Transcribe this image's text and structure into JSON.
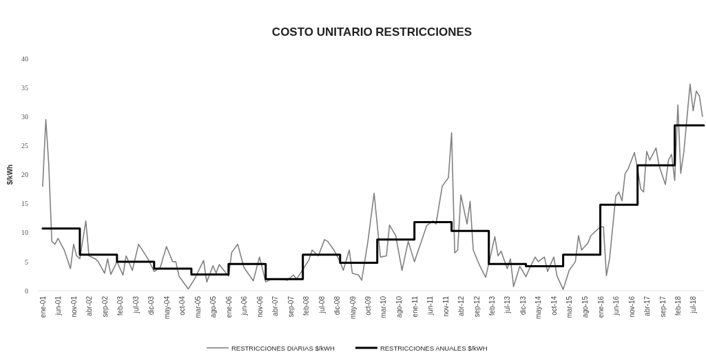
{
  "chart_data": {
    "type": "line",
    "title": "COSTO UNITARIO RESTRICCIONES",
    "ylabel": "$/kWh",
    "xlim": [
      "2000-11-15",
      "2018-10-15"
    ],
    "xticks": [
      {
        "value": "2001-01",
        "label": "ene-01"
      },
      {
        "value": "2001-06",
        "label": "jun-01"
      },
      {
        "value": "2001-11",
        "label": "nov-01"
      },
      {
        "value": "2002-04",
        "label": "abr-02"
      },
      {
        "value": "2002-09",
        "label": "sep-02"
      },
      {
        "value": "2003-02",
        "label": "feb-03"
      },
      {
        "value": "2003-07",
        "label": "jul-03"
      },
      {
        "value": "2003-12",
        "label": "dic-03"
      },
      {
        "value": "2004-05",
        "label": "may-04"
      },
      {
        "value": "2004-10",
        "label": "oct-04"
      },
      {
        "value": "2005-03",
        "label": "mar-05"
      },
      {
        "value": "2005-08",
        "label": "ago-05"
      },
      {
        "value": "2006-01",
        "label": "ene-06"
      },
      {
        "value": "2006-06",
        "label": "jun-06"
      },
      {
        "value": "2006-11",
        "label": "nov-06"
      },
      {
        "value": "2007-04",
        "label": "abr-07"
      },
      {
        "value": "2007-09",
        "label": "sep-07"
      },
      {
        "value": "2008-02",
        "label": "feb-08"
      },
      {
        "value": "2008-07",
        "label": "jul-08"
      },
      {
        "value": "2008-12",
        "label": "dic-08"
      },
      {
        "value": "2009-05",
        "label": "may-09"
      },
      {
        "value": "2009-10",
        "label": "oct-09"
      },
      {
        "value": "2010-03",
        "label": "mar-10"
      },
      {
        "value": "2010-08",
        "label": "ago-10"
      },
      {
        "value": "2011-01",
        "label": "ene-11"
      },
      {
        "value": "2011-06",
        "label": "jun-11"
      },
      {
        "value": "2011-11",
        "label": "nov-11"
      },
      {
        "value": "2012-04",
        "label": "abr-12"
      },
      {
        "value": "2012-09",
        "label": "sep-12"
      },
      {
        "value": "2013-02",
        "label": "feb-13"
      },
      {
        "value": "2013-07",
        "label": "jul-13"
      },
      {
        "value": "2013-12",
        "label": "dic-13"
      },
      {
        "value": "2014-05",
        "label": "may-14"
      },
      {
        "value": "2014-10",
        "label": "oct-14"
      },
      {
        "value": "2015-03",
        "label": "mar-15"
      },
      {
        "value": "2015-08",
        "label": "ago-15"
      },
      {
        "value": "2016-01",
        "label": "ene-16"
      },
      {
        "value": "2016-06",
        "label": "jun-16"
      },
      {
        "value": "2016-11",
        "label": "nov-16"
      },
      {
        "value": "2017-04",
        "label": "abr-17"
      },
      {
        "value": "2017-09",
        "label": "sep-17"
      },
      {
        "value": "2018-02",
        "label": "feb-18"
      },
      {
        "value": "2018-07",
        "label": "jul-18"
      }
    ],
    "ylim": [
      0,
      40
    ],
    "yticks": [
      0,
      5,
      10,
      15,
      20,
      25,
      30,
      35,
      40
    ],
    "grid": false,
    "legend": "bottom",
    "line_style": "solid",
    "marker": "none",
    "series": [
      {
        "name": "RESTRICCIONES DIARIAS $/kWH",
        "color": "#808080",
        "x": [
          "2001-01",
          "2001-02",
          "2001-03",
          "2001-04",
          "2001-05",
          "2001-06",
          "2001-08",
          "2001-10",
          "2001-11",
          "2001-12",
          "2002-01",
          "2002-03",
          "2002-04",
          "2002-06",
          "2002-07",
          "2002-09",
          "2002-10",
          "2002-11",
          "2003-01",
          "2003-03",
          "2003-04",
          "2003-06",
          "2003-08",
          "2003-11",
          "2004-01",
          "2004-03",
          "2004-05",
          "2004-07",
          "2004-08",
          "2004-09",
          "2004-12",
          "2005-02",
          "2005-05",
          "2005-06",
          "2005-08",
          "2005-09",
          "2005-10",
          "2006-01",
          "2006-02",
          "2006-04",
          "2006-06",
          "2006-09",
          "2006-11",
          "2007-01",
          "2007-03",
          "2007-06",
          "2007-08",
          "2007-10",
          "2007-11",
          "2008-03",
          "2008-04",
          "2008-06",
          "2008-08",
          "2008-09",
          "2008-11",
          "2009-01",
          "2009-02",
          "2009-04",
          "2009-05",
          "2009-07",
          "2009-08",
          "2009-10",
          "2009-12",
          "2010-02",
          "2010-04",
          "2010-05",
          "2010-07",
          "2010-09",
          "2010-11",
          "2011-01",
          "2011-03",
          "2011-05",
          "2011-07",
          "2011-08",
          "2011-10",
          "2011-12",
          "2012-01",
          "2012-02",
          "2012-03",
          "2012-04",
          "2012-06",
          "2012-07",
          "2012-08",
          "2012-10",
          "2012-12",
          "2013-03",
          "2013-04",
          "2013-05",
          "2013-07",
          "2013-08",
          "2013-09",
          "2013-11",
          "2014-01",
          "2014-02",
          "2014-04",
          "2014-05",
          "2014-07",
          "2014-08",
          "2014-10",
          "2014-11",
          "2015-01",
          "2015-03",
          "2015-05",
          "2015-06",
          "2015-07",
          "2015-09",
          "2015-10",
          "2016-01",
          "2016-02",
          "2016-03",
          "2016-04",
          "2016-06",
          "2016-07",
          "2016-08",
          "2016-09",
          "2016-10",
          "2016-12",
          "2017-01",
          "2017-02",
          "2017-03",
          "2017-04",
          "2017-05",
          "2017-07",
          "2017-08",
          "2017-10",
          "2017-11",
          "2017-12",
          "2018-01",
          "2018-02",
          "2018-03",
          "2018-04",
          "2018-06",
          "2018-07",
          "2018-08",
          "2018-09",
          "2018-10"
        ],
        "values": [
          18,
          29.5,
          22,
          8.5,
          8,
          9,
          7,
          3.8,
          8,
          6,
          5.5,
          12,
          6,
          5.5,
          5,
          3,
          5.5,
          2.8,
          5,
          2.7,
          6,
          3.5,
          8,
          5.5,
          3.3,
          4,
          7.6,
          5,
          5,
          2.5,
          0.3,
          2,
          5.2,
          1.5,
          4.3,
          3,
          4.5,
          2.5,
          6.6,
          8,
          4,
          1.7,
          5.8,
          1.5,
          2,
          2,
          1.8,
          2.7,
          2,
          5.3,
          7,
          6,
          8.8,
          8.5,
          7,
          5,
          3.5,
          7,
          3,
          2.7,
          1.8,
          8.5,
          16.8,
          5.8,
          6,
          11.3,
          9.5,
          3.5,
          8.5,
          5,
          8,
          11.2,
          12,
          11.5,
          18,
          19.5,
          27.2,
          6.5,
          7,
          16.5,
          11.5,
          15.4,
          7,
          4.4,
          2.3,
          9.3,
          6,
          6.8,
          3.8,
          5.5,
          0.7,
          4.2,
          2.4,
          3.7,
          5.8,
          5,
          5.8,
          3.3,
          5.8,
          2.6,
          0.2,
          3.5,
          5,
          9.5,
          7,
          8.2,
          9.5,
          11,
          11,
          2.6,
          5.5,
          16.3,
          17,
          15.5,
          20.2,
          21,
          23.8,
          21,
          17.5,
          17,
          24,
          22.5,
          24.6,
          21.5,
          18.3,
          22.5,
          23.5,
          19,
          32,
          20.2,
          24,
          35.6,
          31,
          34.4,
          33.5,
          30
        ]
      },
      {
        "name": "RESTRICCIONES ANUALES $/kWH",
        "color": "#000000",
        "type": "step",
        "x": [
          "2001-01",
          "2002-01",
          "2003-01",
          "2004-01",
          "2005-01",
          "2006-01",
          "2007-01",
          "2008-01",
          "2009-01",
          "2010-01",
          "2011-01",
          "2012-01",
          "2013-01",
          "2014-01",
          "2015-01",
          "2016-01",
          "2017-01",
          "2018-01",
          "2018-10-15"
        ],
        "values": [
          10.7,
          6.2,
          5,
          3.8,
          2.8,
          4.6,
          2,
          6.2,
          4.8,
          8.8,
          11.8,
          10.3,
          4.6,
          4.2,
          6.2,
          14.8,
          21.6,
          28.5,
          28.5
        ]
      }
    ]
  }
}
